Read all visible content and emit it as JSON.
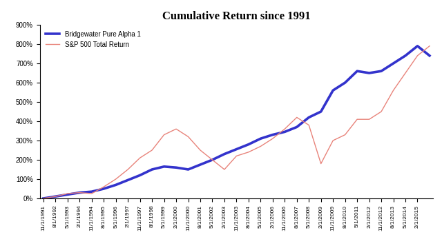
{
  "chart_data": {
    "type": "line",
    "title": "Cumulative Return since 1991",
    "categories": [
      "11/1/1991",
      "8/1/1992",
      "5/1/1993",
      "2/1/1994",
      "11/1/1994",
      "8/1/1995",
      "5/1/1996",
      "2/1/1997",
      "11/1/1997",
      "8/1/1998",
      "5/1/1999",
      "2/1/2000",
      "11/1/2000",
      "8/1/2001",
      "5/1/2002",
      "2/1/2003",
      "11/1/2003",
      "8/1/2004",
      "5/1/2005",
      "2/1/2006",
      "11/1/2006",
      "8/1/2007",
      "5/1/2008",
      "2/1/2009",
      "11/1/2009",
      "8/1/2010",
      "5/1/2011",
      "2/1/2012",
      "11/1/2012",
      "8/1/2013",
      "5/1/2014",
      "2/1/2015",
      null
    ],
    "series": [
      {
        "name": "Bridgewater Pure Alpha 1",
        "color": "#3333cc",
        "values": [
          0,
          10,
          20,
          30,
          35,
          50,
          70,
          95,
          120,
          150,
          165,
          160,
          150,
          175,
          200,
          230,
          255,
          280,
          310,
          330,
          345,
          370,
          420,
          450,
          560,
          600,
          660,
          650,
          660,
          700,
          740,
          790,
          740
        ]
      },
      {
        "name": "S&P 500 Total Return",
        "color": "#e8837a",
        "values": [
          0,
          10,
          25,
          30,
          25,
          60,
          100,
          150,
          210,
          250,
          330,
          360,
          320,
          250,
          200,
          150,
          220,
          240,
          270,
          310,
          360,
          420,
          380,
          180,
          300,
          330,
          410,
          410,
          450,
          560,
          650,
          740,
          790
        ]
      }
    ],
    "ylim": [
      0,
      900
    ],
    "yticks": [
      {
        "value": 0,
        "label": "0%"
      },
      {
        "value": 100,
        "label": "100%"
      },
      {
        "value": 200,
        "label": "200%"
      },
      {
        "value": 300,
        "label": "300%"
      },
      {
        "value": 400,
        "label": "400%"
      },
      {
        "value": 500,
        "label": "500%"
      },
      {
        "value": 600,
        "label": "600%"
      },
      {
        "value": 700,
        "label": "700%"
      },
      {
        "value": 800,
        "label": "800%"
      },
      {
        "value": 900,
        "label": "900%"
      }
    ],
    "legend": "upper left",
    "grid": false
  }
}
